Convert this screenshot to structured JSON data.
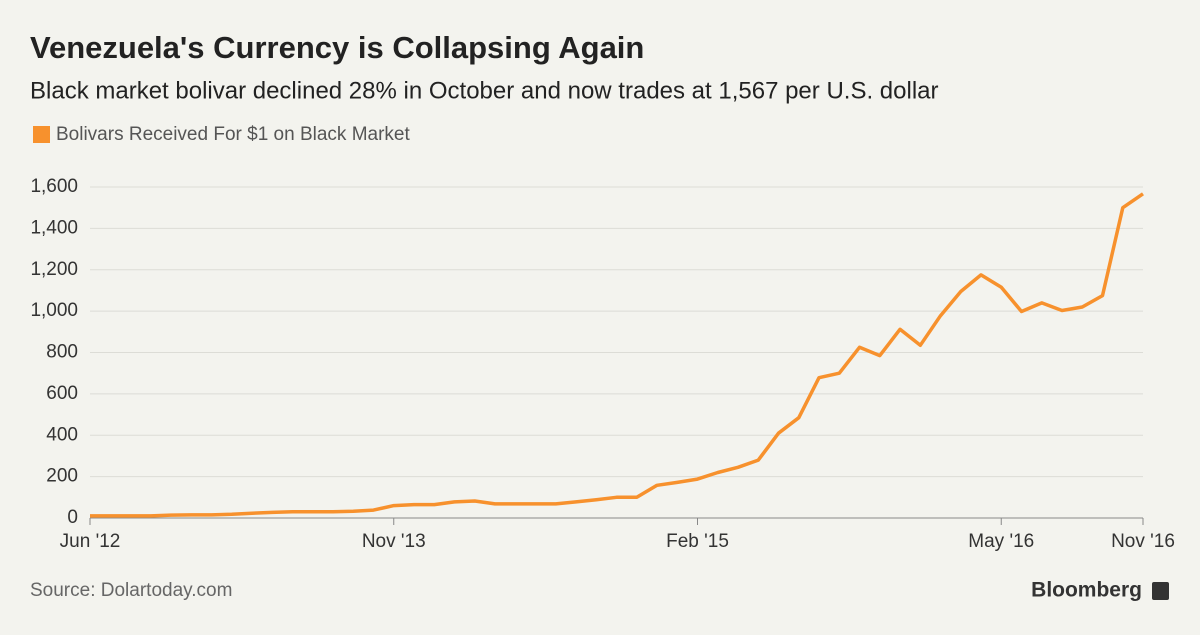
{
  "chart_data": {
    "type": "line",
    "title": "Venezuela's Currency is Collapsing Again",
    "subtitle": "Black market bolivar declined 28% in October and now trades at 1,567 per U.S. dollar",
    "categories": [
      "Jun '12",
      null,
      null,
      null,
      null,
      null,
      null,
      null,
      null,
      null,
      null,
      null,
      null,
      null,
      null,
      "Nov '13",
      null,
      null,
      null,
      null,
      null,
      null,
      null,
      null,
      null,
      null,
      null,
      null,
      null,
      null,
      "Feb '15",
      null,
      null,
      null,
      null,
      null,
      null,
      null,
      null,
      null,
      null,
      null,
      null,
      null,
      null,
      "May '16",
      null,
      null,
      null,
      null,
      null,
      null,
      "Nov '16"
    ],
    "series": [
      {
        "name": "Bolivars Received For $1 on Black Market",
        "color": "#f7912d",
        "values": [
          10,
          10,
          10,
          10,
          14,
          15,
          15,
          18,
          23,
          27,
          30,
          30,
          30,
          33,
          38,
          60,
          65,
          65,
          78,
          82,
          68,
          68,
          68,
          68,
          78,
          88,
          100,
          100,
          158,
          172,
          188,
          220,
          245,
          280,
          410,
          485,
          678,
          700,
          825,
          785,
          912,
          835,
          978,
          1095,
          1175,
          1115,
          998,
          1040,
          1003,
          1020,
          1075,
          1500,
          1567
        ]
      }
    ],
    "ylim": [
      0,
      1600
    ],
    "yticks": [
      0,
      200,
      400,
      600,
      800,
      {
        "value": 1000,
        "label": "1,000"
      },
      {
        "value": 1200,
        "label": "1,200"
      },
      {
        "value": 1400,
        "label": "1,400"
      },
      {
        "value": 1600,
        "label": "1,600"
      }
    ],
    "grid": true,
    "source": "Source: Dolartoday.com",
    "brand": "Bloomberg"
  }
}
